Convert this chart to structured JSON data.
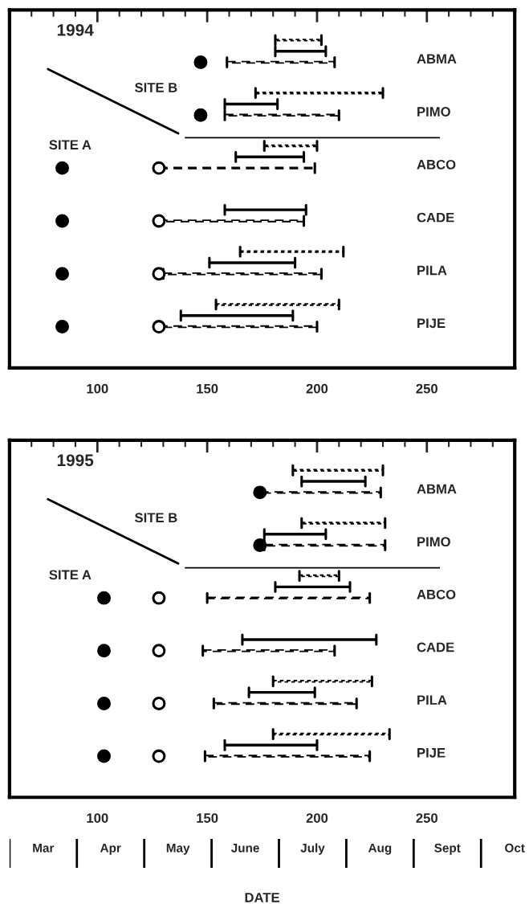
{
  "chart_data": [
    {
      "type": "bar",
      "orientation": "horizontal",
      "title": "1994",
      "annotations": [
        "SITE B",
        "SITE A"
      ],
      "categories": [
        "ABMA",
        "PIMO",
        "ABCO",
        "CADE",
        "PILA",
        "PIJE"
      ],
      "xlim": [
        60,
        290
      ],
      "xticks": [
        {
          "value": 70,
          "label": null
        },
        {
          "value": 80,
          "label": null
        },
        {
          "value": 90,
          "label": null
        },
        100,
        {
          "value": 110,
          "label": null
        },
        {
          "value": 120,
          "label": null
        },
        {
          "value": 130,
          "label": null
        },
        {
          "value": 140,
          "label": null
        },
        150,
        {
          "value": 160,
          "label": null
        },
        {
          "value": 170,
          "label": null
        },
        {
          "value": 180,
          "label": null
        },
        {
          "value": 190,
          "label": null
        },
        200,
        {
          "value": 210,
          "label": null
        },
        {
          "value": 220,
          "label": null
        },
        {
          "value": 230,
          "label": null
        },
        {
          "value": 240,
          "label": null
        },
        250,
        {
          "value": 260,
          "label": null
        },
        {
          "value": 270,
          "label": null
        },
        {
          "value": 280,
          "label": null
        }
      ],
      "legend": false,
      "series": [
        {
          "color": "#000000",
          "line_style": "dotted",
          "base": [
            181,
            172,
            176,
            null,
            165,
            154
          ],
          "values": [
            21,
            58,
            24,
            null,
            47,
            56
          ]
        },
        {
          "color": "#000000",
          "line_style": "solid",
          "base": [
            181,
            158,
            163,
            158,
            151,
            138
          ],
          "values": [
            23,
            24,
            31,
            37,
            39,
            51
          ]
        },
        {
          "color": "#000000",
          "line_style": "dashed",
          "base": [
            159,
            158,
            128,
            128,
            130,
            128
          ],
          "values": [
            49,
            52,
            71,
            66,
            72,
            72
          ]
        },
        {
          "type": "scatter",
          "color": "#000000",
          "marker": "circle",
          "values": [
            147,
            147,
            84,
            84,
            84,
            84
          ]
        },
        {
          "type": "scatter",
          "color": "#ffffff",
          "marker": "circle",
          "values": [
            null,
            null,
            128,
            128,
            128,
            128
          ]
        }
      ]
    },
    {
      "type": "bar",
      "orientation": "horizontal",
      "title": "1995",
      "annotations": [
        "SITE B",
        "SITE A"
      ],
      "categories": [
        "ABMA",
        "PIMO",
        "ABCO",
        "CADE",
        "PILA",
        "PIJE"
      ],
      "xlim": [
        60,
        290
      ],
      "xticks": [
        {
          "value": 70,
          "label": null
        },
        {
          "value": 80,
          "label": null
        },
        {
          "value": 90,
          "label": null
        },
        100,
        {
          "value": 110,
          "label": null
        },
        {
          "value": 120,
          "label": null
        },
        {
          "value": 130,
          "label": null
        },
        {
          "value": 140,
          "label": null
        },
        150,
        {
          "value": 160,
          "label": null
        },
        {
          "value": 170,
          "label": null
        },
        {
          "value": 180,
          "label": null
        },
        {
          "value": 190,
          "label": null
        },
        200,
        {
          "value": 210,
          "label": null
        },
        {
          "value": 220,
          "label": null
        },
        {
          "value": 230,
          "label": null
        },
        {
          "value": 240,
          "label": null
        },
        250,
        {
          "value": 260,
          "label": null
        },
        {
          "value": 270,
          "label": null
        },
        {
          "value": 280,
          "label": null
        }
      ],
      "legend": false,
      "series": [
        {
          "color": "#000000",
          "line_style": "dotted",
          "base": [
            189,
            193,
            192,
            null,
            180,
            180
          ],
          "values": [
            41,
            38,
            18,
            null,
            45,
            53
          ]
        },
        {
          "color": "#000000",
          "line_style": "solid",
          "base": [
            193,
            176,
            181,
            166,
            169,
            158
          ],
          "values": [
            29,
            28,
            34,
            61,
            30,
            42
          ]
        },
        {
          "color": "#000000",
          "line_style": "dashed",
          "base": [
            174,
            176,
            150,
            148,
            153,
            149
          ],
          "values": [
            55,
            55,
            74,
            60,
            65,
            75
          ]
        },
        {
          "type": "scatter",
          "color": "#000000",
          "marker": "circle",
          "values": [
            174,
            174,
            103,
            103,
            103,
            103
          ]
        },
        {
          "type": "scatter",
          "color": "#ffffff",
          "marker": "circle",
          "values": [
            null,
            null,
            128,
            128,
            128,
            128
          ]
        }
      ]
    },
    {
      "type": "other",
      "categories": [
        "Mar",
        "Apr",
        "May",
        "June",
        "July",
        "Aug",
        "Sept",
        "Oct"
      ],
      "xlabel": "DATE"
    }
  ]
}
